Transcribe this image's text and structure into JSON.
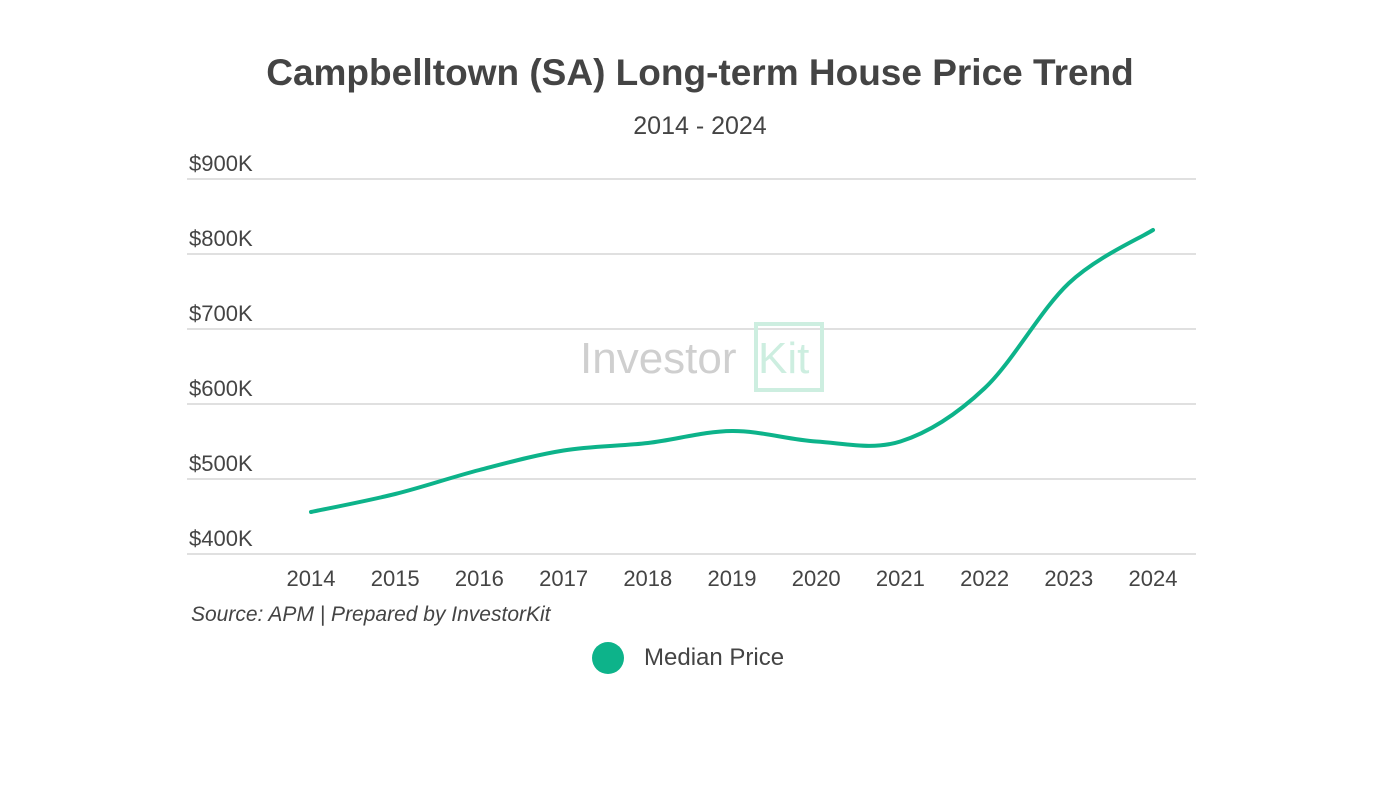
{
  "chart_data": {
    "type": "line",
    "title": "Campbelltown (SA) Long-term House Price Trend",
    "subtitle": "2014 - 2024",
    "categories": [
      "2014",
      "2015",
      "2016",
      "2017",
      "2018",
      "2019",
      "2020",
      "2021",
      "2022",
      "2023",
      "2024"
    ],
    "series": [
      {
        "name": "Median Price",
        "values": [
          456000,
          480000,
          512000,
          538000,
          548000,
          564000,
          550000,
          550000,
          621000,
          761000,
          832000
        ],
        "color": "#0db38a"
      }
    ],
    "ylim": [
      400000,
      900000
    ],
    "yticks": [
      400000,
      500000,
      600000,
      700000,
      800000,
      900000
    ],
    "ytick_labels": [
      "$400K",
      "$500K",
      "$600K",
      "$700K",
      "$800K",
      "$900K"
    ],
    "xlabel": "",
    "ylabel": "",
    "grid": true,
    "legend_position": "bottom",
    "source": "Source: APM | Prepared by InvestorKit",
    "watermark": "InvestorKit"
  }
}
